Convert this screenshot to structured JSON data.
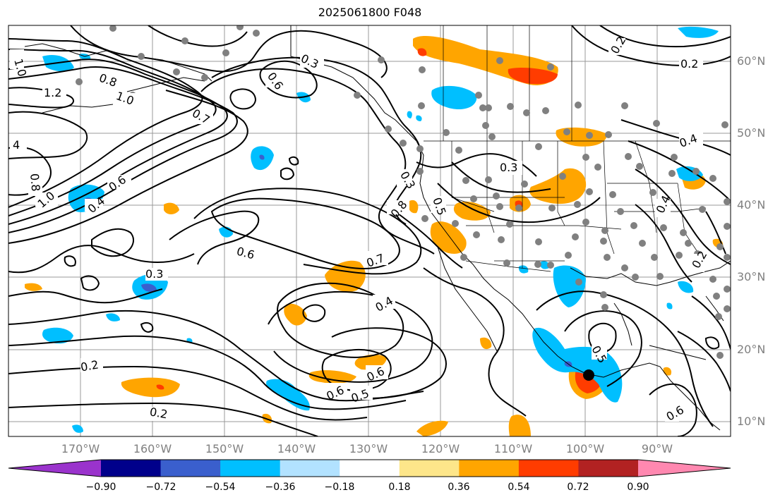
{
  "title": "2025061800 F048",
  "lat_ticks": [
    "60°N",
    "50°N",
    "40°N",
    "30°N",
    "20°N",
    "10°N"
  ],
  "lon_ticks": [
    "170°W",
    "160°W",
    "150°W",
    "140°W",
    "130°W",
    "120°W",
    "110°W",
    "100°W",
    "90°W"
  ],
  "colorbar": {
    "labels": [
      "−0.90",
      "−0.72",
      "−0.54",
      "−0.36",
      "−0.18",
      "0.18",
      "0.36",
      "0.54",
      "0.72",
      "0.90"
    ],
    "colors": [
      "#9a33cc",
      "#00008b",
      "#3a5fcd",
      "#00bfff",
      "#b2e2ff",
      "#ffffff",
      "#fde68a",
      "#ffa500",
      "#ff3c00",
      "#b22222",
      "#ff88b0"
    ]
  },
  "contour_labels": [
    "1.0",
    "1.2",
    "1.0",
    "0.8",
    "0.7",
    "0.6",
    "0.4",
    "0.8",
    "1.0",
    "0.6",
    "0.5",
    "0.6",
    "0.3",
    "0.6",
    "0.7",
    "0.4",
    "0.2",
    "0.2",
    "0.5",
    "0.6",
    "0.6",
    "0.8",
    "0.3",
    "0.4",
    "0.3",
    "0.4",
    "0.2",
    "0.2",
    "0.3",
    "0.5",
    "0.2"
  ],
  "colors": {
    "contour": "#000000",
    "border": "#000000",
    "grid": "#808080",
    "station": "#808080"
  }
}
